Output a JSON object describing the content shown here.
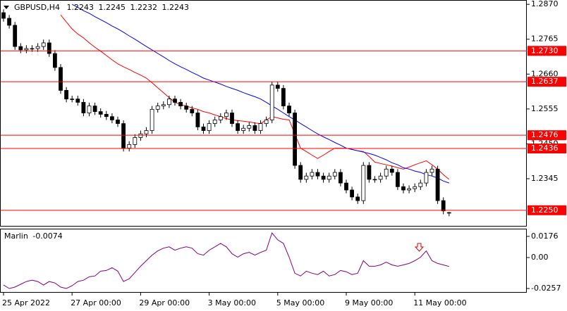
{
  "chart_data": [
    {
      "type": "candlestick",
      "symbol": "GBPUSD,H4",
      "categories": [
        "25 Apr 2022",
        null,
        null,
        null,
        null,
        null,
        null,
        null,
        null,
        null,
        null,
        null,
        "27 Apr 00:00",
        null,
        null,
        null,
        null,
        null,
        null,
        null,
        null,
        null,
        null,
        null,
        "29 Apr 00:00",
        null,
        null,
        null,
        null,
        null,
        null,
        null,
        null,
        null,
        null,
        null,
        "3 May 00:00",
        null,
        null,
        null,
        null,
        null,
        null,
        null,
        null,
        null,
        null,
        null,
        "5 May 00:00",
        null,
        null,
        null,
        null,
        null,
        null,
        null,
        null,
        null,
        null,
        null,
        "9 May 00:00",
        null,
        null,
        null,
        null,
        null,
        null,
        null,
        null,
        null,
        null,
        null,
        "11 May 00:00",
        null,
        null,
        null,
        null,
        null,
        null
      ],
      "open": [
        1.2845,
        1.2828,
        1.2807,
        1.2743,
        1.2733,
        1.2737,
        1.2737,
        1.2743,
        1.2754,
        1.2722,
        1.268,
        1.2611,
        1.2585,
        1.2585,
        1.2575,
        1.2543,
        1.2564,
        1.2547,
        1.2539,
        1.2532,
        1.2522,
        1.2511,
        1.2437,
        1.2448,
        1.2469,
        1.248,
        1.249,
        1.2554,
        1.2564,
        1.2568,
        1.2585,
        1.2575,
        1.2564,
        1.2554,
        1.2543,
        1.2501,
        1.249,
        1.2511,
        1.2522,
        1.2532,
        1.2543,
        1.2511,
        1.249,
        1.2497,
        1.2505,
        1.249,
        1.2511,
        1.2522,
        1.2627,
        1.2617,
        1.2564,
        1.2543,
        1.2385,
        1.2343,
        1.2353,
        1.2364,
        1.2353,
        1.2343,
        1.2353,
        1.2364,
        1.2332,
        1.2311,
        1.229,
        1.2279,
        1.2385,
        1.2343,
        1.2343,
        1.2353,
        1.2374,
        1.2364,
        1.2321,
        1.2311,
        1.2315,
        1.2321,
        1.2332,
        1.2364,
        1.2374,
        1.2279,
        1.2243
      ],
      "high": [
        1.2855,
        1.2838,
        1.2817,
        1.2753,
        1.2747,
        1.2747,
        1.2753,
        1.2764,
        1.2764,
        1.2732,
        1.269,
        1.2621,
        1.2595,
        1.2595,
        1.2585,
        1.2574,
        1.2574,
        1.2557,
        1.2549,
        1.2542,
        1.2532,
        1.2521,
        1.2458,
        1.2479,
        1.249,
        1.25,
        1.2564,
        1.2574,
        1.2578,
        1.2595,
        1.2595,
        1.2585,
        1.2574,
        1.2564,
        1.2553,
        1.2511,
        1.2521,
        1.2532,
        1.2542,
        1.2553,
        1.2553,
        1.2521,
        1.2507,
        1.2515,
        1.2515,
        1.2521,
        1.2532,
        1.2637,
        1.2637,
        1.2627,
        1.2574,
        1.2553,
        1.2395,
        1.2363,
        1.2374,
        1.2374,
        1.2363,
        1.2363,
        1.2374,
        1.2374,
        1.2342,
        1.2321,
        1.23,
        1.2395,
        1.2395,
        1.2353,
        1.2363,
        1.2384,
        1.2384,
        1.2374,
        1.2331,
        1.2325,
        1.2331,
        1.2342,
        1.2374,
        1.2384,
        1.2384,
        1.2289,
        1.2245
      ],
      "low": [
        1.2818,
        1.2797,
        1.2733,
        1.2723,
        1.2723,
        1.2727,
        1.2727,
        1.2733,
        1.2712,
        1.267,
        1.2601,
        1.2575,
        1.2575,
        1.2565,
        1.2533,
        1.2533,
        1.2537,
        1.2529,
        1.2522,
        1.2512,
        1.2501,
        1.2427,
        1.2427,
        1.2438,
        1.2459,
        1.247,
        1.248,
        1.2544,
        1.2554,
        1.2558,
        1.2565,
        1.2554,
        1.2544,
        1.2533,
        1.2491,
        1.248,
        1.248,
        1.2501,
        1.2512,
        1.2522,
        1.2501,
        1.248,
        1.248,
        1.2487,
        1.248,
        1.248,
        1.2501,
        1.2512,
        1.2607,
        1.2554,
        1.2533,
        1.2375,
        1.2333,
        1.2333,
        1.2343,
        1.2343,
        1.2333,
        1.2333,
        1.2343,
        1.2322,
        1.2301,
        1.228,
        1.2269,
        1.2269,
        1.2333,
        1.2333,
        1.2333,
        1.2343,
        1.2354,
        1.2311,
        1.2301,
        1.2301,
        1.2305,
        1.2311,
        1.2322,
        1.2354,
        1.2269,
        1.2238,
        1.2232
      ],
      "close": [
        1.2828,
        1.2807,
        1.2743,
        1.2733,
        1.2737,
        1.2737,
        1.2743,
        1.2754,
        1.2722,
        1.268,
        1.2611,
        1.2585,
        1.2585,
        1.2575,
        1.2543,
        1.2564,
        1.2547,
        1.2539,
        1.2532,
        1.2522,
        1.2511,
        1.2437,
        1.2448,
        1.2469,
        1.248,
        1.249,
        1.2554,
        1.2564,
        1.2568,
        1.2585,
        1.2575,
        1.2564,
        1.2554,
        1.2543,
        1.2501,
        1.249,
        1.2511,
        1.2522,
        1.2532,
        1.2543,
        1.2511,
        1.249,
        1.2497,
        1.2505,
        1.249,
        1.2511,
        1.2522,
        1.2627,
        1.2617,
        1.2564,
        1.2543,
        1.2385,
        1.2343,
        1.2353,
        1.2364,
        1.2353,
        1.2343,
        1.2353,
        1.2364,
        1.2332,
        1.2311,
        1.229,
        1.2279,
        1.2385,
        1.2343,
        1.2343,
        1.2353,
        1.2374,
        1.2364,
        1.2321,
        1.2311,
        1.2315,
        1.2321,
        1.2332,
        1.2364,
        1.2374,
        1.2279,
        1.2248,
        1.2243
      ],
      "up_color": "#ffffff",
      "down_color": "#000000",
      "series": [
        {
          "color": "#ff0000",
          "values": [
            null,
            null,
            null,
            null,
            null,
            null,
            null,
            null,
            null,
            null,
            1.2838,
            1.2817,
            1.2796,
            1.2781,
            1.2769,
            1.2754,
            1.2741,
            1.2729,
            1.2716,
            1.2703,
            1.2691,
            1.2682,
            1.2674,
            1.2665,
            1.2657,
            1.2648,
            1.2634,
            1.2619,
            1.2604,
            1.2589,
            1.2575,
            1.2568,
            1.2564,
            1.2558,
            1.2554,
            1.2547,
            1.2543,
            1.2537,
            1.2532,
            1.2526,
            1.2522,
            1.252,
            1.2518,
            1.2516,
            1.2513,
            1.2511,
            1.2522,
            1.2532,
            1.2528,
            1.2524,
            1.2522,
            1.248,
            1.2437,
            1.2427,
            1.2416,
            1.2406,
            1.2416,
            1.2427,
            1.2437,
            1.2437,
            1.2437,
            1.2433,
            1.2429,
            1.2427,
            1.2412,
            1.2395,
            1.2391,
            1.2387,
            1.2383,
            1.2378,
            1.2374,
            1.238,
            1.2387,
            1.2393,
            1.2399,
            1.2387,
            1.2374,
            1.2357,
            1.2343
          ]
        },
        {
          "color": "#0000ff",
          "values": [
            null,
            null,
            null,
            null,
            null,
            null,
            null,
            null,
            null,
            null,
            null,
            null,
            1.287,
            1.2861,
            1.2851,
            1.2843,
            1.2833,
            1.2824,
            1.2815,
            1.2805,
            1.2796,
            1.2786,
            1.2775,
            1.2765,
            1.2754,
            1.2743,
            1.2733,
            1.2722,
            1.2712,
            1.2701,
            1.2691,
            1.2682,
            1.2674,
            1.2665,
            1.2657,
            1.2648,
            1.2642,
            1.2636,
            1.263,
            1.2623,
            1.2617,
            1.2611,
            1.2604,
            1.2598,
            1.2592,
            1.2585,
            1.2575,
            1.2564,
            1.2554,
            1.2543,
            1.2532,
            1.2522,
            1.2511,
            1.2501,
            1.249,
            1.248,
            1.2471,
            1.2463,
            1.2454,
            1.2446,
            1.2437,
            1.2433,
            1.2429,
            1.2425,
            1.2421,
            1.2416,
            1.2409,
            1.2402,
            1.2393,
            1.2387,
            1.2378,
            1.2374,
            1.2368,
            1.2364,
            1.2357,
            1.2353,
            1.2347,
            1.2338,
            1.2332
          ]
        }
      ],
      "levels": [
        {
          "value": 1.273,
          "label": "1.2730"
        },
        1.2637,
        1.2476,
        1.2436,
        {
          "value": 1.225,
          "label": "1.2250"
        }
      ],
      "level_color": "#ff0000",
      "ylim": [
        1.2203,
        1.2881
      ],
      "yticks": [
        {
          "value": 1.287,
          "label": "1.2870"
        },
        1.2765,
        {
          "value": 1.266,
          "label": "1.2660"
        },
        1.2555,
        {
          "value": 1.245,
          "label": "1.2450"
        },
        1.2345
      ]
    },
    {
      "type": "line",
      "name": "Marlin",
      "color": "#800080",
      "values": [
        -0.0228,
        -0.0257,
        -0.0245,
        -0.0222,
        -0.0199,
        -0.0188,
        -0.0199,
        -0.0228,
        -0.0199,
        -0.0211,
        -0.0245,
        -0.0257,
        -0.0234,
        -0.0199,
        -0.0188,
        -0.0159,
        -0.0153,
        -0.0113,
        -0.0107,
        -0.0084,
        -0.0113,
        -0.0199,
        -0.0176,
        -0.0124,
        -0.0072,
        -0.0026,
        0.002,
        0.0055,
        0.0078,
        0.0089,
        0.0061,
        0.0078,
        0.0089,
        0.0078,
        0.0032,
        0.002,
        0.0061,
        0.0089,
        0.0118,
        0.0089,
        0.0032,
        0.0003,
        0.0032,
        0.0043,
        0.002,
        0.0043,
        0.0061,
        0.0205,
        0.0147,
        0.0118,
        0.0003,
        -0.013,
        -0.0153,
        -0.0113,
        -0.013,
        -0.0141,
        -0.0113,
        -0.0153,
        -0.0141,
        -0.0107,
        -0.0118,
        -0.0141,
        -0.013,
        -0.0026,
        -0.0072,
        -0.0072,
        -0.0061,
        -0.0038,
        -0.0061,
        -0.0072,
        -0.0061,
        -0.0049,
        -0.0026,
        0.0003,
        0.0055,
        -0.0026,
        -0.0049,
        -0.0061,
        -0.0074
      ],
      "ylim": [
        -0.0286,
        0.0234
      ],
      "yticks": [
        0.0176,
        {
          "value": 0,
          "label": "0.00"
        },
        -0.0257
      ]
    }
  ]
}
